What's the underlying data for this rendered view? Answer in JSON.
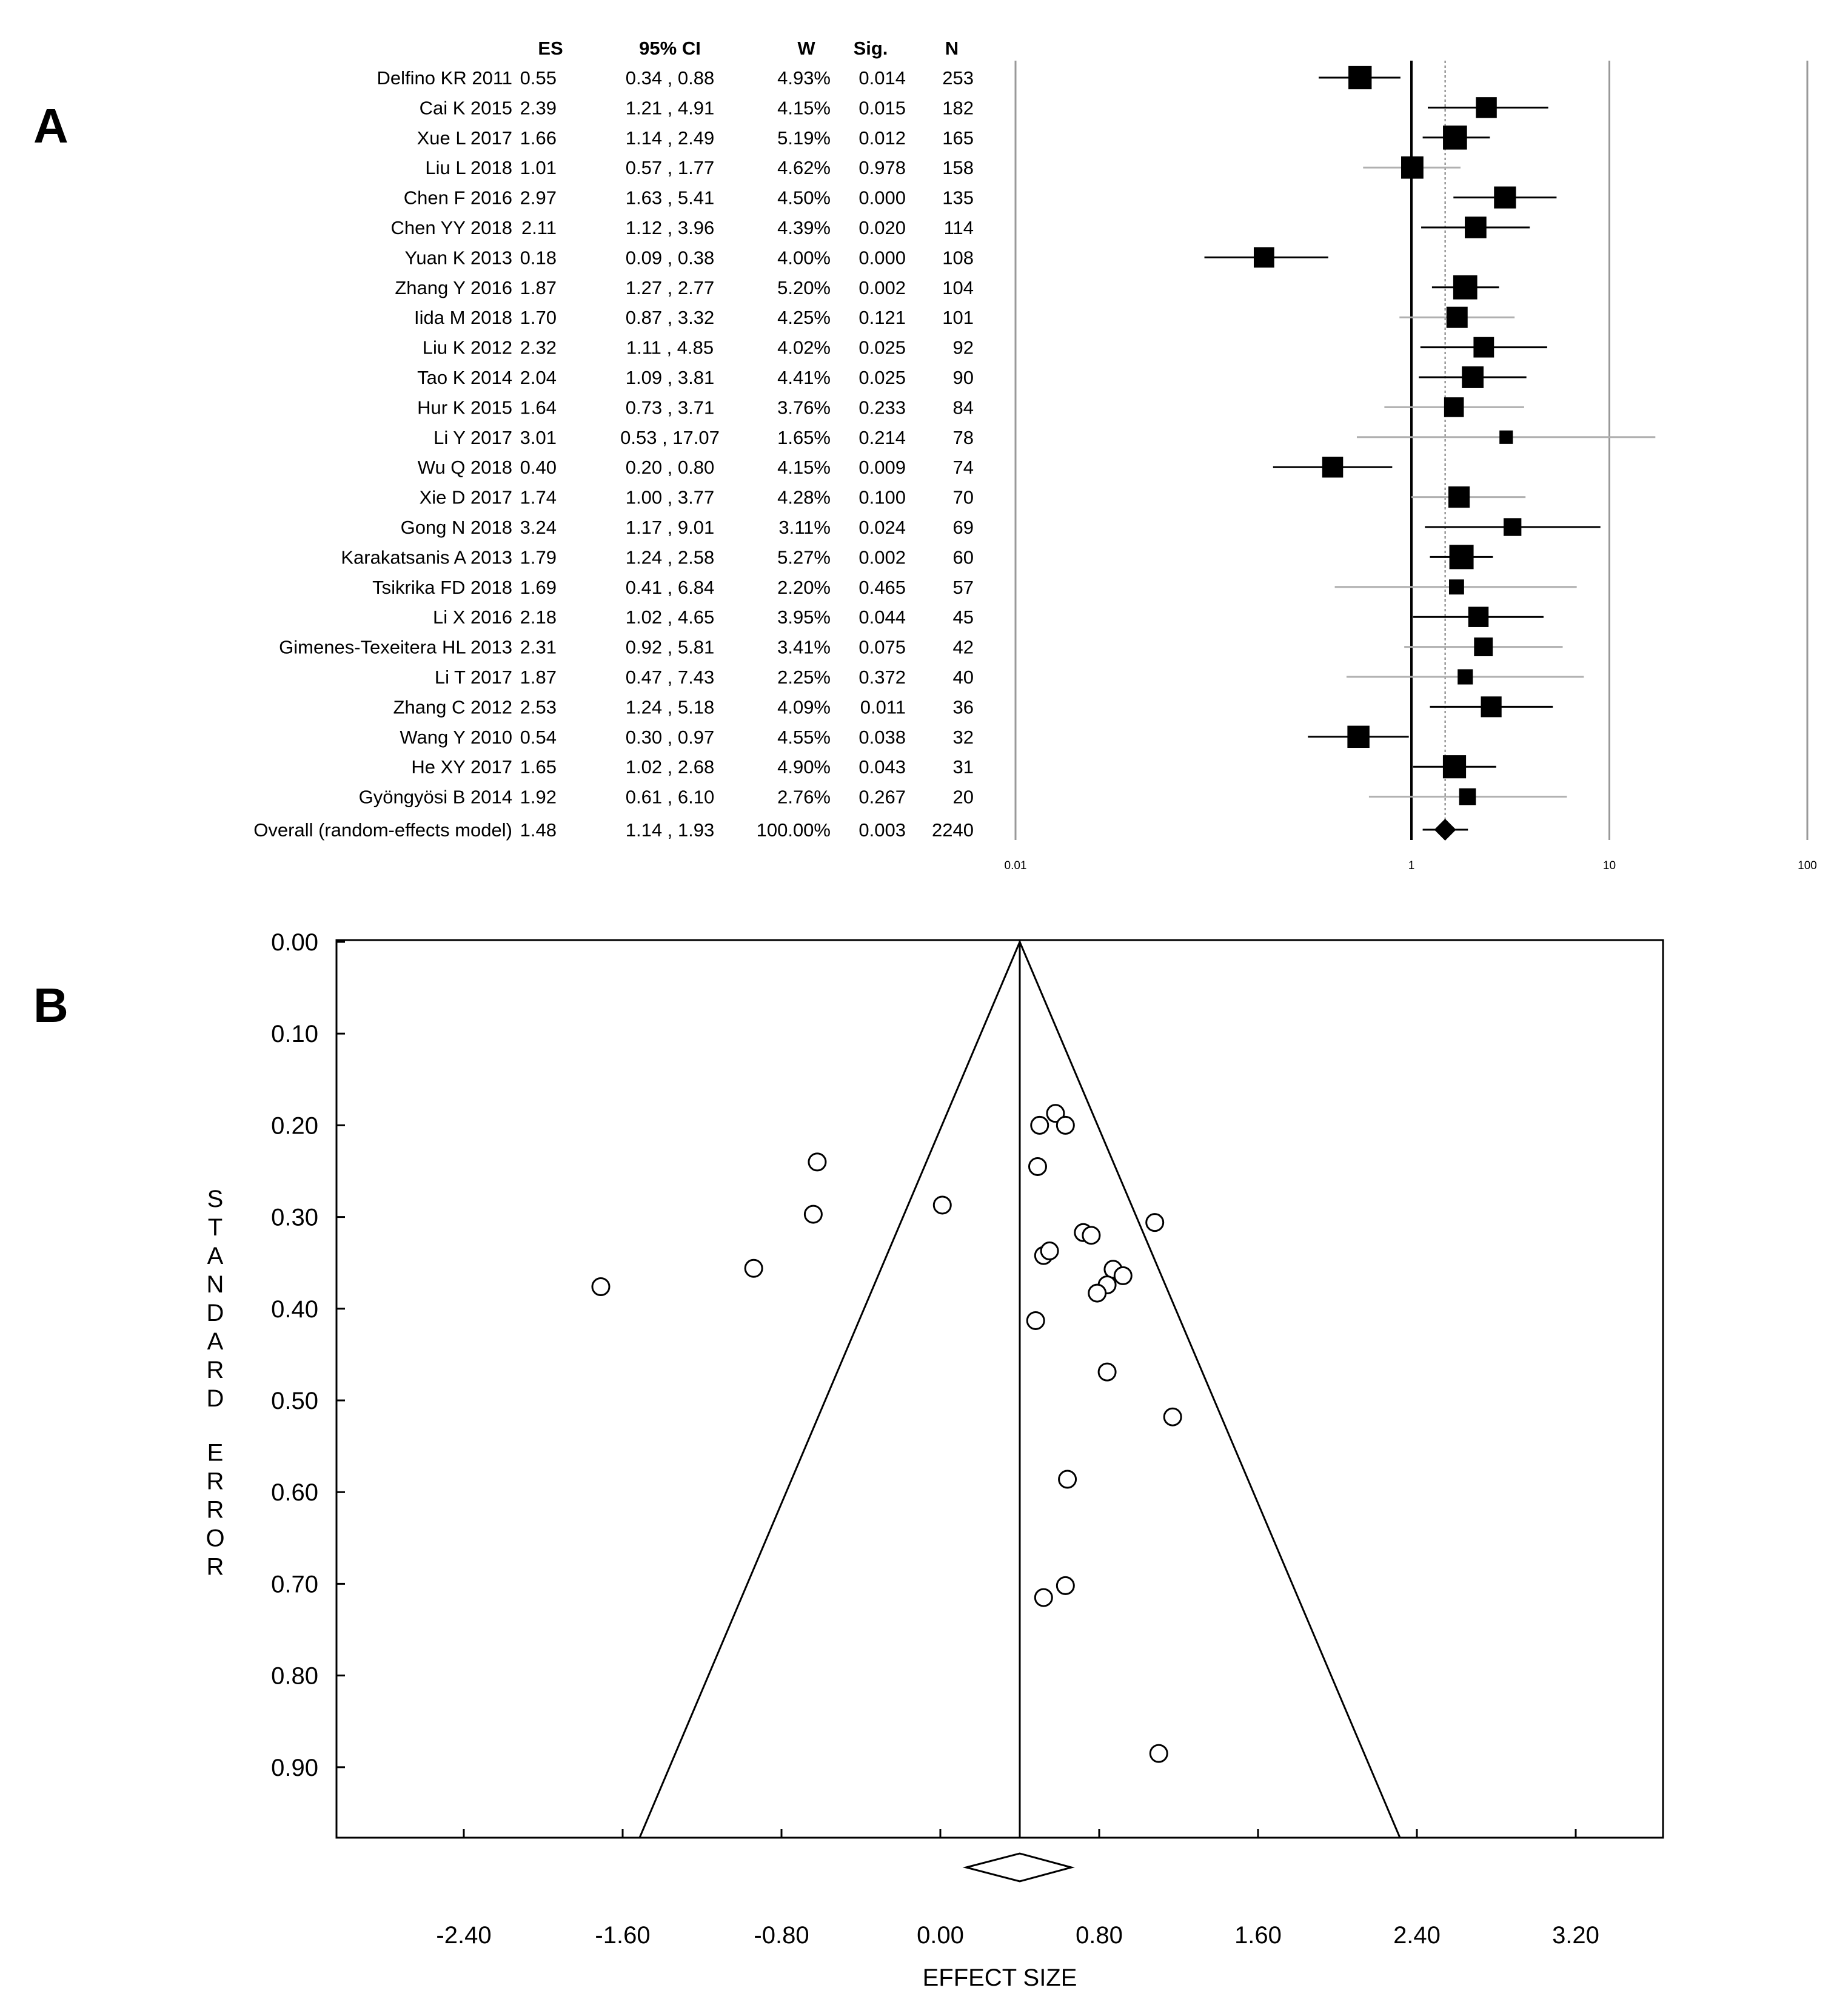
{
  "panel_a": {
    "label": "A",
    "headers": {
      "study": "",
      "es": "ES",
      "ci": "95% CI",
      "w": "W",
      "sig": "Sig.",
      "n": "N"
    },
    "rows": [
      {
        "study": "Delfino KR 2011",
        "es": "0.55",
        "ci": "0.34 , 0.88",
        "w": "4.93%",
        "sig": "0.014",
        "n": "253"
      },
      {
        "study": "Cai K 2015",
        "es": "2.39",
        "ci": "1.21 , 4.91",
        "w": "4.15%",
        "sig": "0.015",
        "n": "182"
      },
      {
        "study": "Xue L 2017",
        "es": "1.66",
        "ci": "1.14 , 2.49",
        "w": "5.19%",
        "sig": "0.012",
        "n": "165"
      },
      {
        "study": "Liu L 2018",
        "es": "1.01",
        "ci": "0.57 , 1.77",
        "w": "4.62%",
        "sig": "0.978",
        "n": "158"
      },
      {
        "study": "Chen F 2016",
        "es": "2.97",
        "ci": "1.63 , 5.41",
        "w": "4.50%",
        "sig": "0.000",
        "n": "135"
      },
      {
        "study": "Chen YY 2018",
        "es": "2.11",
        "ci": "1.12 , 3.96",
        "w": "4.39%",
        "sig": "0.020",
        "n": "114"
      },
      {
        "study": "Yuan K  2013",
        "es": "0.18",
        "ci": "0.09 , 0.38",
        "w": "4.00%",
        "sig": "0.000",
        "n": "108"
      },
      {
        "study": "Zhang Y 2016",
        "es": "1.87",
        "ci": "1.27 , 2.77",
        "w": "5.20%",
        "sig": "0.002",
        "n": "104"
      },
      {
        "study": "Iida M 2018",
        "es": "1.70",
        "ci": "0.87 , 3.32",
        "w": "4.25%",
        "sig": "0.121",
        "n": "101"
      },
      {
        "study": "Liu K 2012",
        "es": "2.32",
        "ci": "1.11 , 4.85",
        "w": "4.02%",
        "sig": "0.025",
        "n": "92"
      },
      {
        "study": "Tao K 2014",
        "es": "2.04",
        "ci": "1.09 , 3.81",
        "w": "4.41%",
        "sig": "0.025",
        "n": "90"
      },
      {
        "study": "Hur K 2015",
        "es": "1.64",
        "ci": "0.73 , 3.71",
        "w": "3.76%",
        "sig": "0.233",
        "n": "84"
      },
      {
        "study": "Li Y  2017",
        "es": "3.01",
        "ci": "0.53 , 17.07",
        "w": "1.65%",
        "sig": "0.214",
        "n": "78"
      },
      {
        "study": "Wu Q 2018",
        "es": "0.40",
        "ci": "0.20 , 0.80",
        "w": "4.15%",
        "sig": "0.009",
        "n": "74"
      },
      {
        "study": "Xie D 2017",
        "es": "1.74",
        "ci": "1.00 , 3.77",
        "w": "4.28%",
        "sig": "0.100",
        "n": "70"
      },
      {
        "study": "Gong N 2018",
        "es": "3.24",
        "ci": "1.17 , 9.01",
        "w": "3.11%",
        "sig": "0.024",
        "n": "69"
      },
      {
        "study": "Karakatsanis A 2013",
        "es": "1.79",
        "ci": "1.24 , 2.58",
        "w": "5.27%",
        "sig": "0.002",
        "n": "60"
      },
      {
        "study": "Tsikrika FD 2018",
        "es": "1.69",
        "ci": "0.41 , 6.84",
        "w": "2.20%",
        "sig": "0.465",
        "n": "57"
      },
      {
        "study": "Li X 2016",
        "es": "2.18",
        "ci": "1.02 , 4.65",
        "w": "3.95%",
        "sig": "0.044",
        "n": "45"
      },
      {
        "study": "Gimenes-Texeitera HL 2013",
        "es": "2.31",
        "ci": "0.92 , 5.81",
        "w": "3.41%",
        "sig": "0.075",
        "n": "42"
      },
      {
        "study": "Li T 2017",
        "es": "1.87",
        "ci": "0.47 , 7.43",
        "w": "2.25%",
        "sig": "0.372",
        "n": "40"
      },
      {
        "study": "Zhang C 2012",
        "es": "2.53",
        "ci": "1.24 , 5.18",
        "w": "4.09%",
        "sig": "0.011",
        "n": "36"
      },
      {
        "study": "Wang Y 2010",
        "es": "0.54",
        "ci": "0.30 , 0.97",
        "w": "4.55%",
        "sig": "0.038",
        "n": "32"
      },
      {
        "study": "He XY 2017",
        "es": "1.65",
        "ci": "1.02 , 2.68",
        "w": "4.90%",
        "sig": "0.043",
        "n": "31"
      },
      {
        "study": "Gyöngyösi B 2014",
        "es": "1.92",
        "ci": "0.61 , 6.10",
        "w": "2.76%",
        "sig": "0.267",
        "n": "20"
      }
    ],
    "overall": {
      "study": "Overall (random-effects model)",
      "es": "1.48",
      "ci": "1.14 , 1.93",
      "w": "100.00%",
      "sig": "0.003",
      "n": "2240"
    }
  },
  "panel_b": {
    "label": "B",
    "y_title_line1": "STANDARD",
    "y_title_line2": "ERROR",
    "x_title": "EFFECT SIZE"
  },
  "chart_data": [
    {
      "type": "forest",
      "scale": "log",
      "xlim": [
        0.01,
        100
      ],
      "xticks": [
        "0.01",
        "1",
        "10",
        "100"
      ],
      "reference_line": 1,
      "pooled_line": 1.48,
      "estimates": [
        0.55,
        2.39,
        1.66,
        1.01,
        2.97,
        2.11,
        0.18,
        1.87,
        1.7,
        2.32,
        2.04,
        1.64,
        3.01,
        0.4,
        1.74,
        3.24,
        1.79,
        1.69,
        2.18,
        2.31,
        1.87,
        2.53,
        0.54,
        1.65,
        1.92
      ],
      "ci_lower": [
        0.34,
        1.21,
        1.14,
        0.57,
        1.63,
        1.12,
        0.09,
        1.27,
        0.87,
        1.11,
        1.09,
        0.73,
        0.53,
        0.2,
        1.0,
        1.17,
        1.24,
        0.41,
        1.02,
        0.92,
        0.47,
        1.24,
        0.3,
        1.02,
        0.61
      ],
      "ci_upper": [
        0.88,
        4.91,
        2.49,
        1.77,
        5.41,
        3.96,
        0.38,
        2.77,
        3.32,
        4.85,
        3.81,
        3.71,
        17.07,
        0.8,
        3.77,
        9.01,
        2.58,
        6.84,
        4.65,
        5.81,
        7.43,
        5.18,
        0.97,
        2.68,
        6.1
      ],
      "weights": [
        4.93,
        4.15,
        5.19,
        4.62,
        4.5,
        4.39,
        4.0,
        5.2,
        4.25,
        4.02,
        4.41,
        3.76,
        1.65,
        4.15,
        4.28,
        3.11,
        5.27,
        2.2,
        3.95,
        3.41,
        2.25,
        4.09,
        4.55,
        4.9,
        2.76
      ],
      "overall": {
        "estimate": 1.48,
        "lower": 1.14,
        "upper": 1.93
      }
    },
    {
      "type": "scatter",
      "subtype": "funnel",
      "xlabel": "EFFECT SIZE",
      "ylabel": "STANDARD ERROR",
      "xlim": [
        -3.0,
        3.65
      ],
      "ylim": [
        0.975,
        0.0
      ],
      "xticks": [
        "-2.40",
        "-1.60",
        "-0.80",
        "0.00",
        "0.80",
        "1.60",
        "2.40",
        "3.20"
      ],
      "yticks": [
        "0.00",
        "0.10",
        "0.20",
        "0.30",
        "0.40",
        "0.50",
        "0.60",
        "0.70",
        "0.80",
        "0.90"
      ],
      "pooled_effect": 0.4,
      "pooled_ci": [
        0.13,
        0.66
      ],
      "funnel_apex": [
        0.4,
        0.0
      ],
      "points": [
        [
          0.5,
          0.2
        ],
        [
          0.58,
          0.187
        ],
        [
          0.63,
          0.2
        ],
        [
          -0.62,
          0.24
        ],
        [
          0.49,
          0.245
        ],
        [
          -0.64,
          0.297
        ],
        [
          0.01,
          0.287
        ],
        [
          1.08,
          0.306
        ],
        [
          0.72,
          0.317
        ],
        [
          0.76,
          0.32
        ],
        [
          0.52,
          0.342
        ],
        [
          0.55,
          0.337
        ],
        [
          -0.94,
          0.356
        ],
        [
          0.87,
          0.357
        ],
        [
          0.92,
          0.364
        ],
        [
          0.84,
          0.374
        ],
        [
          0.79,
          0.383
        ],
        [
          -1.71,
          0.376
        ],
        [
          0.48,
          0.413
        ],
        [
          0.84,
          0.469
        ],
        [
          1.17,
          0.518
        ],
        [
          0.64,
          0.586
        ],
        [
          0.63,
          0.702
        ],
        [
          0.52,
          0.715
        ],
        [
          1.1,
          0.885
        ]
      ]
    }
  ]
}
